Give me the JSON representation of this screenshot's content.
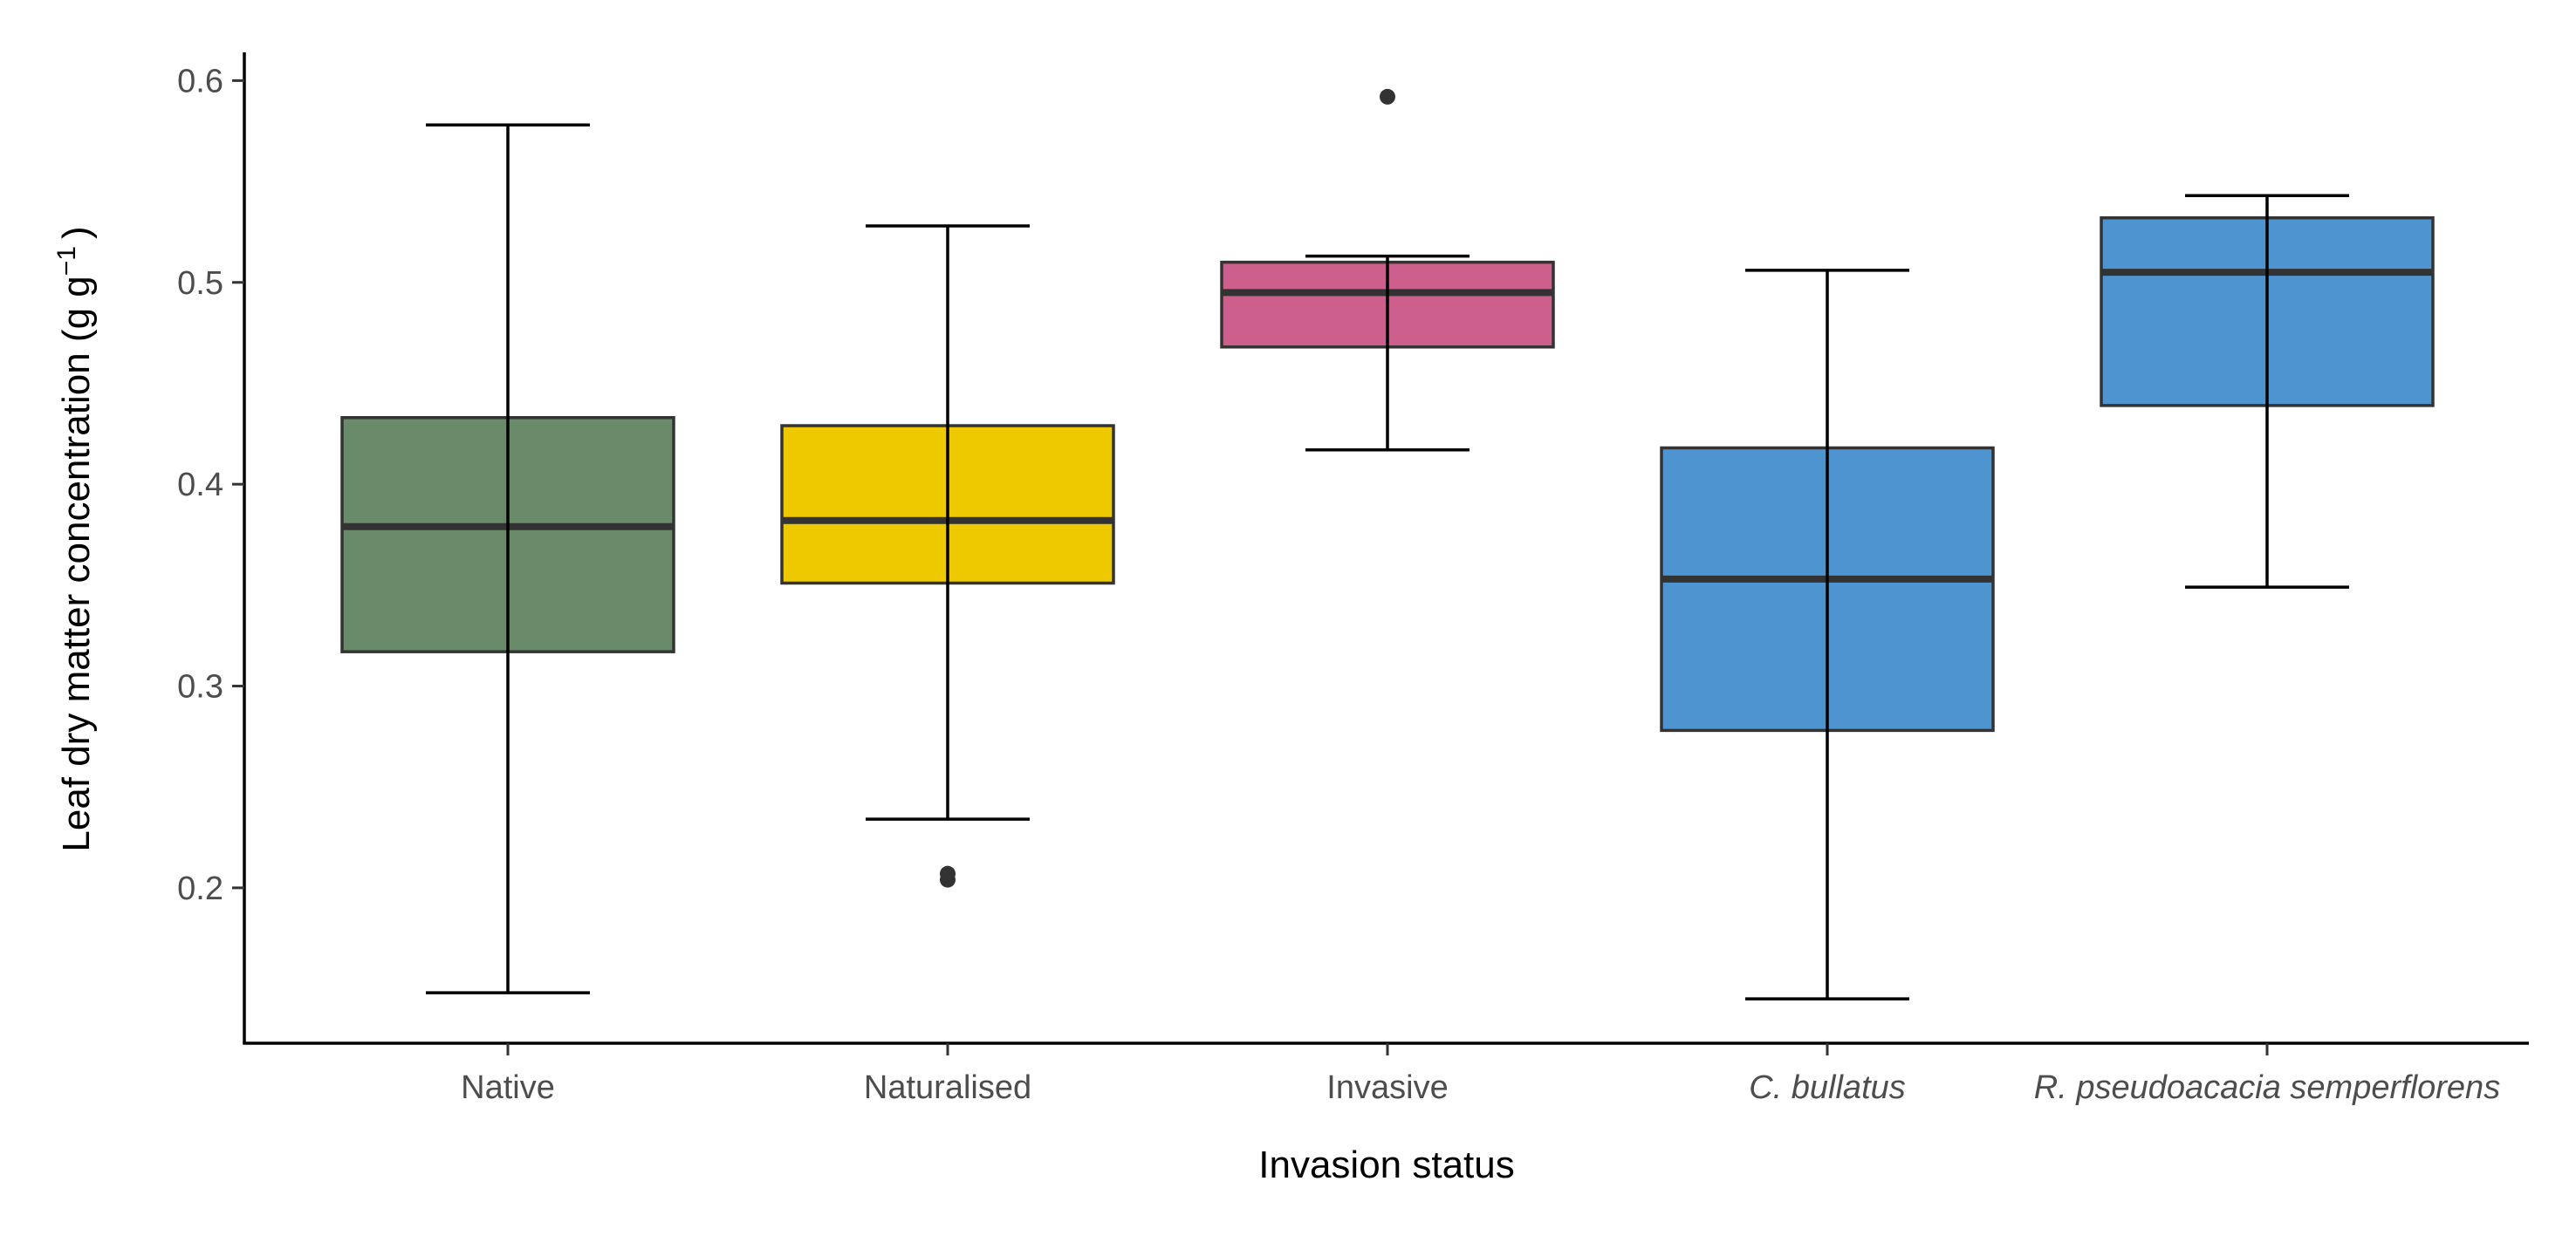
{
  "chart_data": {
    "type": "box",
    "xlabel": "Invasion status",
    "ylabel": "Leaf dry matter concentration (g g",
    "ylabel_superscript": "−1",
    "ylabel_suffix": ")",
    "ylim": [
      0.123,
      0.614
    ],
    "yticks": [
      0.2,
      0.3,
      0.4,
      0.5,
      0.6
    ],
    "ytick_labels": [
      "0.2",
      "0.3",
      "0.4",
      "0.5",
      "0.6"
    ],
    "grid": false,
    "legend": "none",
    "categories": [
      "Native",
      "Naturalised",
      "Invasive",
      "C. bullatus",
      "R. pseudoacacia semperflorens"
    ],
    "category_italic": [
      false,
      false,
      false,
      true,
      true
    ],
    "boxes": [
      {
        "category": "Native",
        "whisker_low": 0.148,
        "q1": 0.317,
        "median": 0.379,
        "q3": 0.433,
        "whisker_high": 0.578,
        "outliers": [],
        "color": "#6a8b6a"
      },
      {
        "category": "Naturalised",
        "whisker_low": 0.234,
        "q1": 0.351,
        "median": 0.382,
        "q3": 0.429,
        "whisker_high": 0.528,
        "outliers": [
          0.204,
          0.207
        ],
        "color": "#efc900"
      },
      {
        "category": "Invasive",
        "whisker_low": 0.417,
        "q1": 0.468,
        "median": 0.495,
        "q3": 0.51,
        "whisker_high": 0.513,
        "outliers": [
          0.592
        ],
        "color": "#cc5f8c"
      },
      {
        "category": "C. bullatus",
        "whisker_low": 0.145,
        "q1": 0.278,
        "median": 0.353,
        "q3": 0.418,
        "whisker_high": 0.506,
        "outliers": [],
        "color": "#4e94d0"
      },
      {
        "category": "R. pseudoacacia semperflorens",
        "whisker_low": 0.349,
        "q1": 0.439,
        "median": 0.505,
        "q3": 0.532,
        "whisker_high": 0.543,
        "outliers": [],
        "color": "#4e94d0"
      }
    ]
  }
}
